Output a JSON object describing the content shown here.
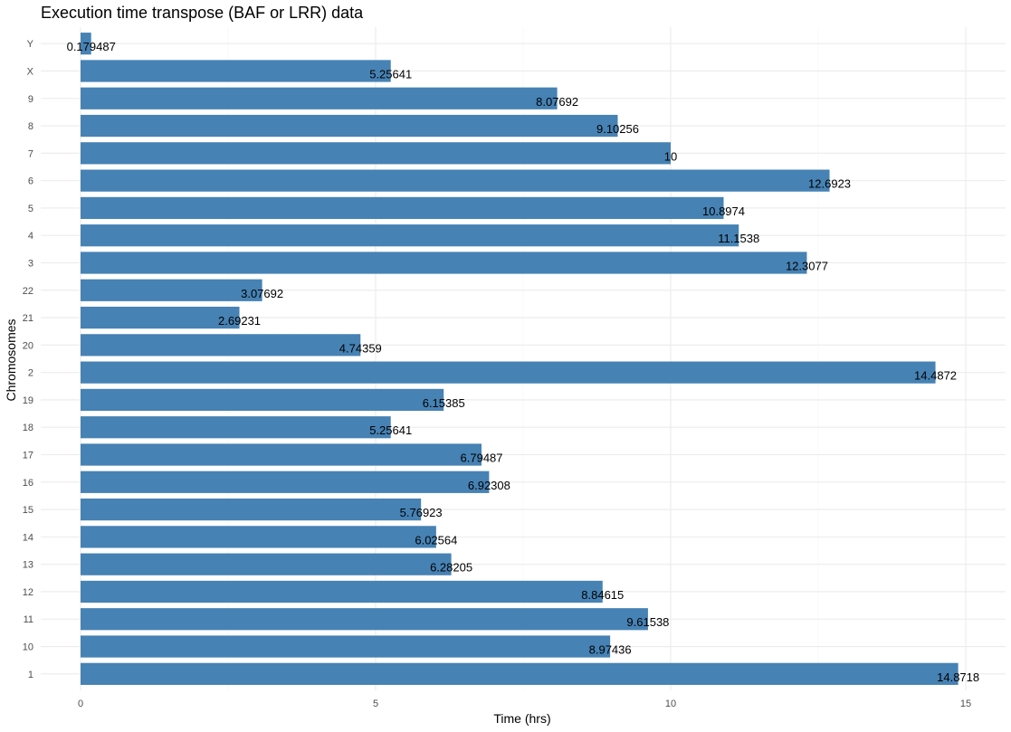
{
  "chart_data": {
    "type": "bar",
    "orientation": "horizontal",
    "title": "Execution time transpose (BAF or LRR) data",
    "xlabel": "Time (hrs)",
    "ylabel": "Chromosomes",
    "xlim": [
      0,
      15
    ],
    "x_ticks": [
      0,
      5,
      10,
      15
    ],
    "grid": true,
    "legend": "none",
    "bar_color": "#4682b4",
    "categories": [
      "1",
      "10",
      "11",
      "12",
      "13",
      "14",
      "15",
      "16",
      "17",
      "18",
      "19",
      "2",
      "20",
      "21",
      "22",
      "3",
      "4",
      "5",
      "6",
      "7",
      "8",
      "9",
      "X",
      "Y"
    ],
    "values": [
      14.8718,
      8.97436,
      9.61538,
      8.84615,
      6.28205,
      6.02564,
      5.76923,
      6.92308,
      6.79487,
      5.25641,
      6.15385,
      14.4872,
      4.74359,
      2.69231,
      3.07692,
      12.3077,
      11.1538,
      10.8974,
      12.6923,
      10,
      9.10256,
      8.07692,
      5.25641,
      0.179487
    ],
    "data_labels": [
      "14.8718",
      "8.97436",
      "9.61538",
      "8.84615",
      "6.28205",
      "6.02564",
      "5.76923",
      "6.92308",
      "6.79487",
      "5.25641",
      "6.15385",
      "14.4872",
      "4.74359",
      "2.69231",
      "3.07692",
      "12.3077",
      "11.1538",
      "10.8974",
      "12.6923",
      "10",
      "9.10256",
      "8.07692",
      "5.25641",
      "0.179487"
    ]
  }
}
